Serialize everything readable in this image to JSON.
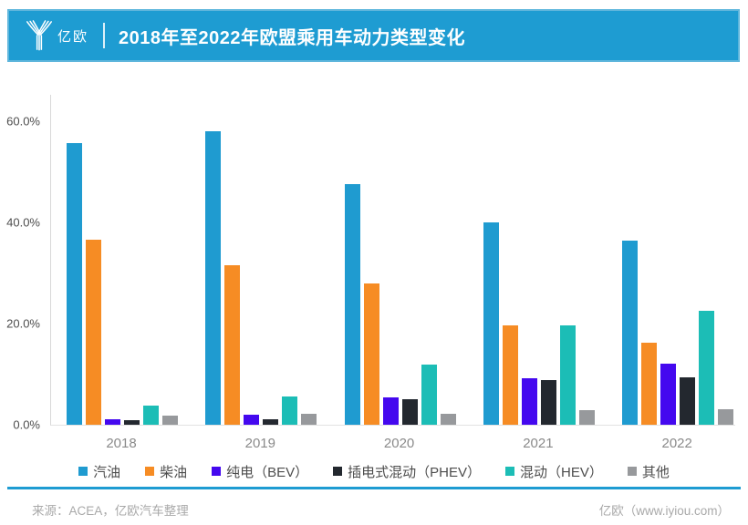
{
  "header": {
    "brand": "亿欧",
    "title": "2018年至2022年欧盟乘用车动力类型变化"
  },
  "chart_data": {
    "type": "bar",
    "title": "2018年至2022年欧盟乘用车动力类型变化",
    "categories": [
      "2018",
      "2019",
      "2020",
      "2021",
      "2022"
    ],
    "series": [
      {
        "name": "汽油",
        "color": "#1F9BD0",
        "values": [
          55.7,
          58.0,
          47.5,
          40.0,
          36.4
        ]
      },
      {
        "name": "柴油",
        "color": "#F68C24",
        "values": [
          36.5,
          31.5,
          28.0,
          19.6,
          16.2
        ]
      },
      {
        "name": "纯电（BEV）",
        "color": "#4408EF",
        "values": [
          1.0,
          1.9,
          5.4,
          9.1,
          12.1
        ]
      },
      {
        "name": "插电式混动（PHEV）",
        "color": "#23282F",
        "values": [
          0.9,
          1.1,
          5.1,
          8.9,
          9.3
        ]
      },
      {
        "name": "混动（HEV）",
        "color": "#1CBDB6",
        "values": [
          3.8,
          5.6,
          11.9,
          19.7,
          22.6
        ]
      },
      {
        "name": "其他",
        "color": "#97999C",
        "values": [
          1.8,
          2.1,
          2.1,
          2.8,
          3.0
        ]
      }
    ],
    "xlabel": "",
    "ylabel": "",
    "yticks": [
      {
        "v": 0,
        "label": "0.0%"
      },
      {
        "v": 20,
        "label": "20.0%"
      },
      {
        "v": 40,
        "label": "40.0%"
      },
      {
        "v": 60,
        "label": "60.0%"
      }
    ],
    "ylim": [
      0,
      65.2
    ],
    "grid": false,
    "legend_position": "bottom"
  },
  "footer": {
    "source": "来源：ACEA，亿欧汽车整理",
    "credit": "亿欧（www.iyiou.com）"
  },
  "colors": {
    "brand_blue": "#1E9CD2"
  }
}
